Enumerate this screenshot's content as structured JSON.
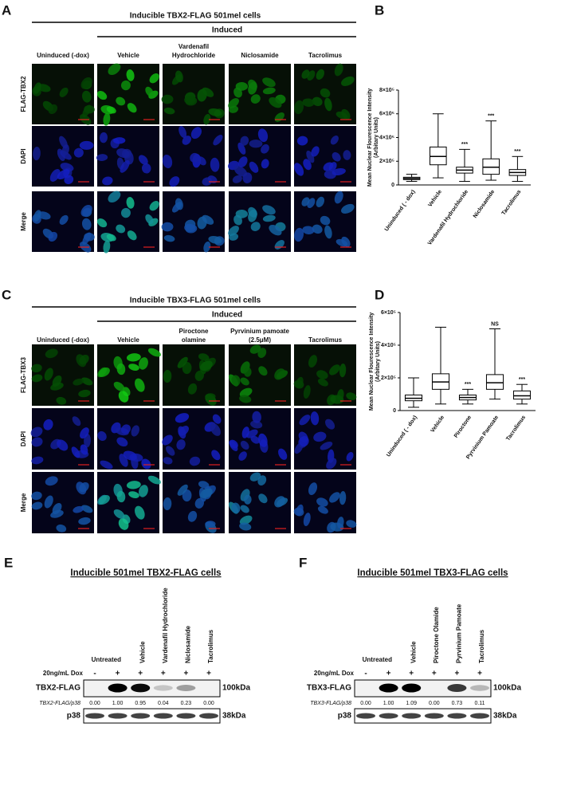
{
  "panels": [
    {
      "letter": "A",
      "title": "Inducible TBX2-FLAG 501mel cells",
      "induced": "Induced",
      "columns": [
        [
          "Uninduced (-dox)"
        ],
        [
          "Vehicle"
        ],
        [
          "Vardenafil",
          "Hydrochloride"
        ],
        [
          "Niclosamide"
        ],
        [
          "Tacrolimus"
        ]
      ],
      "rows": [
        "FLAG-TBX2",
        "DAPI",
        "Merge"
      ]
    },
    {
      "letter": "C",
      "title": "Inducible TBX3-FLAG 501mel cells",
      "induced": "Induced",
      "columns": [
        [
          "Uninduced (-dox)"
        ],
        [
          "Vehicle"
        ],
        [
          "Piroctone",
          "olamine"
        ],
        [
          "Pyrvinium pamoate",
          "(2.5μM)"
        ],
        [
          "Tacrolimus"
        ]
      ],
      "rows": [
        "FLAG-TBX3",
        "DAPI",
        "Merge"
      ]
    }
  ],
  "chart_letters": [
    "B",
    "D"
  ],
  "chart_data": [
    {
      "type": "box",
      "ylabel": "Mean Nuclear Flourescence Intensity",
      "ylabel_units": "(Arbitary Units)",
      "categories": [
        "Uninduced ( - dox)",
        "Vehicle",
        "Vardenafil Hydrochloride",
        "Niclosamide",
        "Tacrolimus"
      ],
      "boxes": [
        {
          "min": 30000,
          "q1": 45000,
          "median": 55000,
          "q3": 65000,
          "max": 90000
        },
        {
          "min": 60000,
          "q1": 170000,
          "median": 240000,
          "q3": 320000,
          "max": 600000
        },
        {
          "min": 30000,
          "q1": 100000,
          "median": 125000,
          "q3": 150000,
          "max": 300000
        },
        {
          "min": 40000,
          "q1": 90000,
          "median": 150000,
          "q3": 220000,
          "max": 540000
        },
        {
          "min": 30000,
          "q1": 80000,
          "median": 105000,
          "q3": 130000,
          "max": 240000
        }
      ],
      "annotations": [
        null,
        null,
        "***",
        "***",
        "***"
      ],
      "color": "#000000",
      "ylim": [
        0,
        800000
      ],
      "yticks": [
        0,
        {
          "value": 200000,
          "label": "2×10⁵"
        },
        {
          "value": 400000,
          "label": "4×10⁵"
        },
        {
          "value": 600000,
          "label": "6×10⁵"
        },
        {
          "value": 800000,
          "label": "8×10⁵"
        }
      ]
    },
    {
      "type": "box",
      "ylabel": "Mean Nuclear Flourescence Intensity",
      "ylabel_units": "(Arbitary Units)",
      "categories": [
        "Uninduced ( - dox)",
        "Vehicle",
        "Piroctone",
        "Pyrvinium Pamoate",
        "Tacrolimus"
      ],
      "boxes": [
        {
          "min": 20000,
          "q1": 60000,
          "median": 75000,
          "q3": 95000,
          "max": 200000
        },
        {
          "min": 40000,
          "q1": 130000,
          "median": 175000,
          "q3": 225000,
          "max": 510000
        },
        {
          "min": 40000,
          "q1": 65000,
          "median": 80000,
          "q3": 95000,
          "max": 130000
        },
        {
          "min": 70000,
          "q1": 130000,
          "median": 170000,
          "q3": 220000,
          "max": 500000
        },
        {
          "min": 40000,
          "q1": 70000,
          "median": 90000,
          "q3": 120000,
          "max": 160000
        }
      ],
      "annotations": [
        null,
        null,
        "***",
        "NS",
        "***"
      ],
      "color": "#000000",
      "ylim": [
        0,
        600000
      ],
      "yticks": [
        0,
        {
          "value": 200000,
          "label": "2×10⁵"
        },
        {
          "value": 400000,
          "label": "4×10⁵"
        },
        {
          "value": 600000,
          "label": "6×10⁵"
        }
      ]
    }
  ],
  "blots": [
    {
      "letter": "E",
      "title": "Inducible 501mel TBX2-FLAG cells",
      "untreated": "Untreated",
      "lanes": [
        "Vehicle",
        "Vardenafil Hydrochloride",
        "Niclosamide",
        "Tacrolimus"
      ],
      "dox_label": "20ng/mL Dox",
      "dox": [
        "-",
        "+",
        "+",
        "+",
        "+",
        "+"
      ],
      "target": "TBX2-FLAG",
      "target_size": "100kDa",
      "ratio_label": "TBX2-FLAG/p38",
      "ratios": [
        "0.00",
        "1.00",
        "0.95",
        "0.04",
        "0.23",
        "0.00"
      ],
      "loading": "p38",
      "loading_size": "38kDa"
    },
    {
      "letter": "F",
      "title": "Inducible 501mel TBX3-FLAG cells",
      "untreated": "Untreated",
      "lanes": [
        "Vehicle",
        "Piroctone Olamide",
        "Pyrvinium Pamoate",
        "Tacrolimus"
      ],
      "dox_label": "20ng/mL Dox",
      "dox": [
        "-",
        "+",
        "+",
        "+",
        "+",
        "+"
      ],
      "target": "TBX3-FLAG",
      "target_size": "100kDa",
      "ratio_label": "TBX3-FLAG/p38",
      "ratios": [
        "0.00",
        "1.00",
        "1.09",
        "0.00",
        "0.73",
        "0.11"
      ],
      "loading": "p38",
      "loading_size": "38kDa"
    }
  ]
}
